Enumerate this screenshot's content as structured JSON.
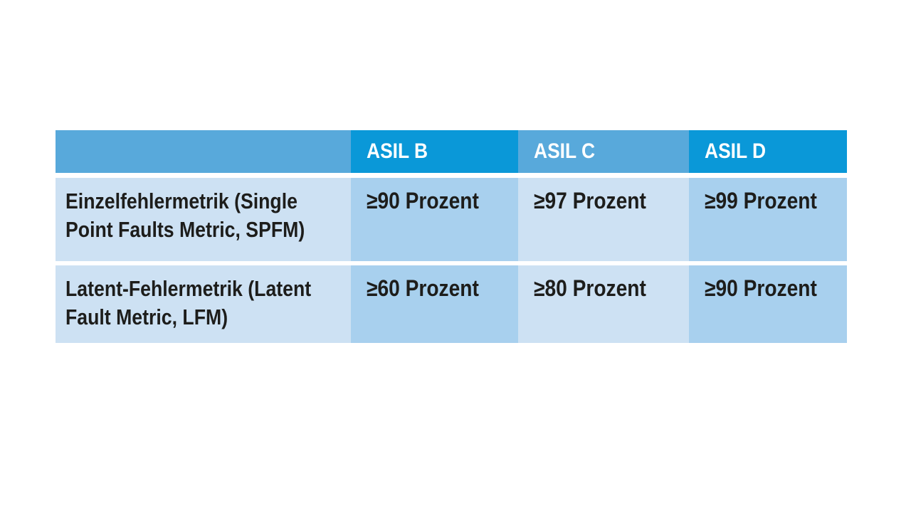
{
  "table": {
    "columns": [
      "",
      "ASIL B",
      "ASIL C",
      "ASIL D"
    ],
    "rows": [
      {
        "label": "Einzelfehlermetrik (Single Point Faults Metric, SPFM)",
        "values": [
          "≥90 Prozent",
          "≥97 Prozent",
          "≥99 Prozent"
        ]
      },
      {
        "label": "Latent-Fehlermetrik (Latent Fault Metric, LFM)",
        "values": [
          "≥60 Prozent",
          "≥80 Prozent",
          "≥90 Prozent"
        ]
      }
    ]
  },
  "chart_data": {
    "type": "table",
    "title": "",
    "columns": [
      "",
      "ASIL B",
      "ASIL C",
      "ASIL D"
    ],
    "rows": [
      [
        "Einzelfehlermetrik (Single Point Faults Metric, SPFM)",
        "≥90 Prozent",
        "≥97 Prozent",
        "≥99 Prozent"
      ],
      [
        "Latent-Fehlermetrik (Latent Fault Metric, LFM)",
        "≥60 Prozent",
        "≥80 Prozent",
        "≥90 Prozent"
      ]
    ],
    "layout_hints": {
      "header_fill_pattern": "alternating medium/dark blue per column",
      "body_fill_pattern": "alternating light/mid blue per column",
      "grid": "off, white gaps between rows only"
    }
  },
  "colors": {
    "header-dark": "#0a98d8",
    "header-medium": "#58a9db",
    "body-light": "#cde1f3",
    "body-mid": "#a8d0ee",
    "text-dark": "#1d1d1b",
    "gap-white": "#ffffff"
  }
}
